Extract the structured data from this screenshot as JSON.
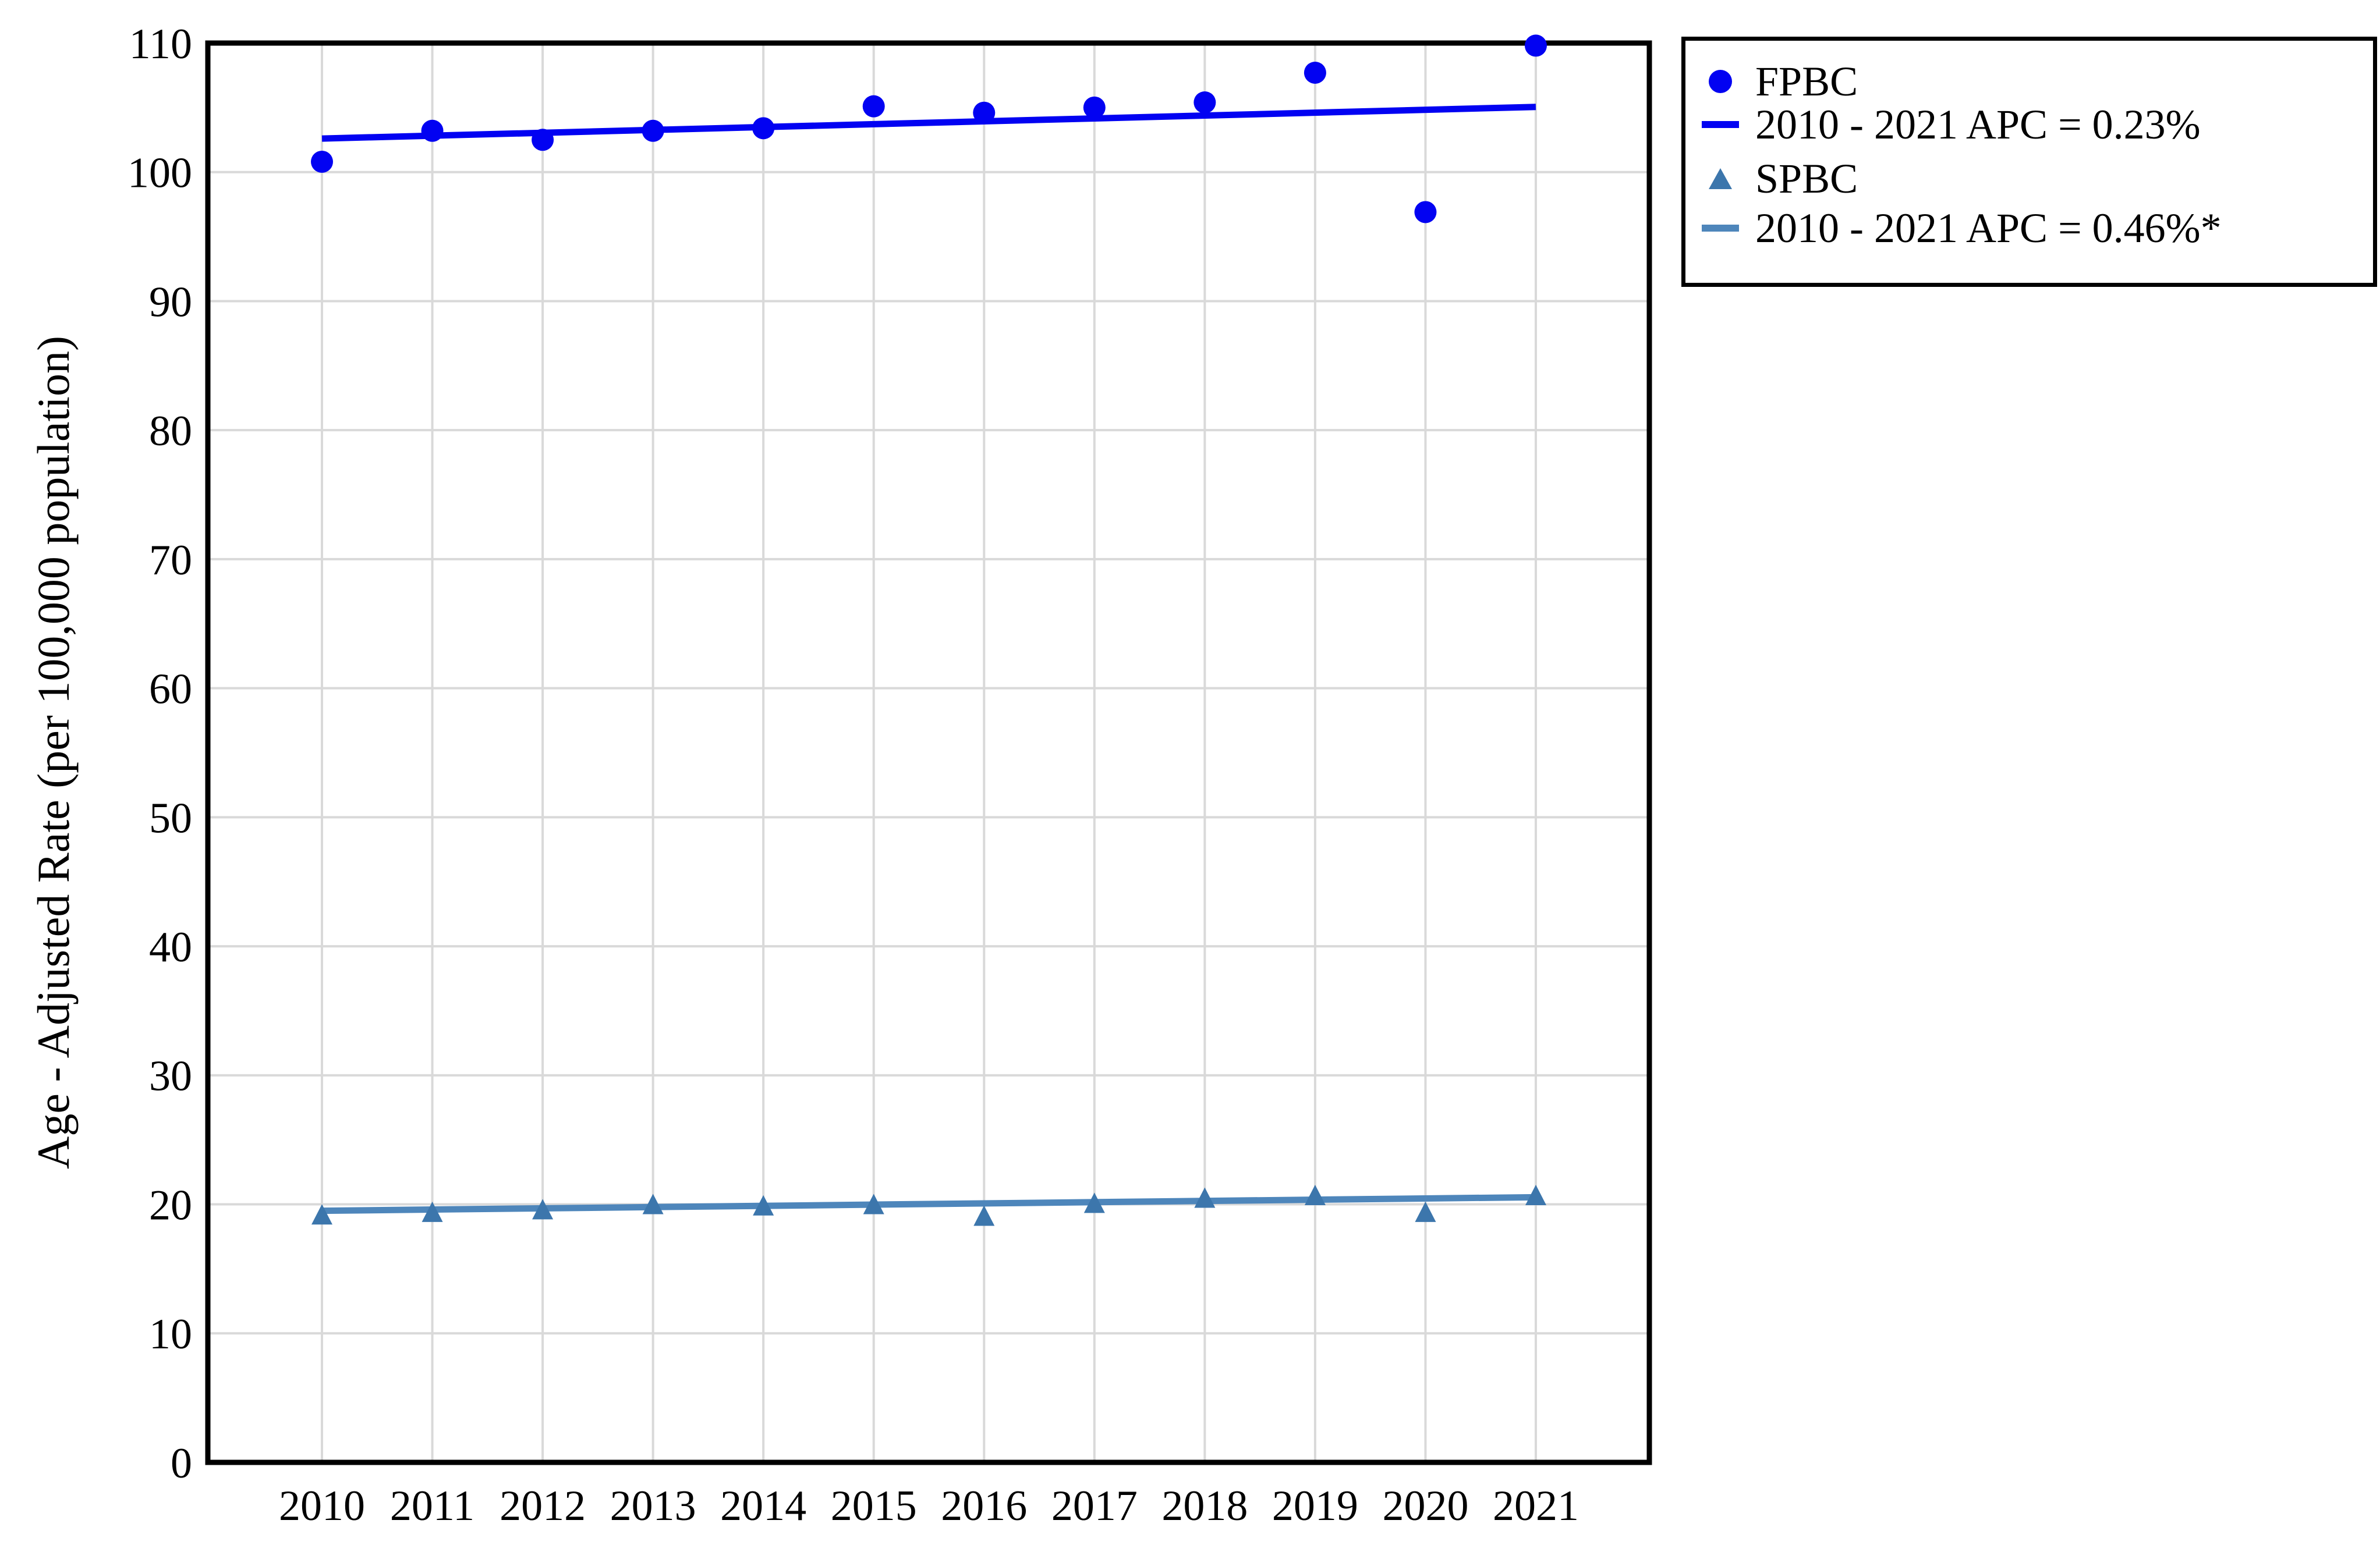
{
  "chart_data": {
    "type": "scatter",
    "title": "",
    "xlabel": "",
    "ylabel": "Age - Adjusted Rate (per 100,000 population)",
    "x_categories": [
      "2010",
      "2011",
      "2012",
      "2013",
      "2014",
      "2015",
      "2016",
      "2017",
      "2018",
      "2019",
      "2020",
      "2021"
    ],
    "y_ticks": [
      0,
      10,
      20,
      30,
      40,
      50,
      60,
      70,
      80,
      90,
      100,
      110
    ],
    "ylim": [
      0,
      110
    ],
    "grid": true,
    "grid_color": "#D9D9D9",
    "axis_color": "#000000",
    "legend_position": "outside-top-right",
    "series": [
      {
        "name": "FPBC",
        "marker": "circle",
        "marker_color": "#0202F2",
        "line_color": "#0202F2",
        "apc_label": "2010 - 2021 APC = 0.23%",
        "values": [
          100.8,
          103.2,
          102.5,
          103.2,
          103.4,
          105.1,
          104.6,
          105.0,
          105.4,
          107.7,
          96.9,
          109.8
        ],
        "trend": {
          "start": 102.6,
          "end": 105.05
        }
      },
      {
        "name": "SPBC",
        "marker": "triangle",
        "marker_color": "#3C76AC",
        "line_color": "#4E86BB",
        "apc_label": "2010 - 2021 APC = 0.46%*",
        "values": [
          19.2,
          19.4,
          19.6,
          20.0,
          19.9,
          20.0,
          19.1,
          20.1,
          20.5,
          20.7,
          19.4,
          20.7
        ],
        "trend": {
          "start": 19.5,
          "end": 20.55
        }
      }
    ]
  }
}
